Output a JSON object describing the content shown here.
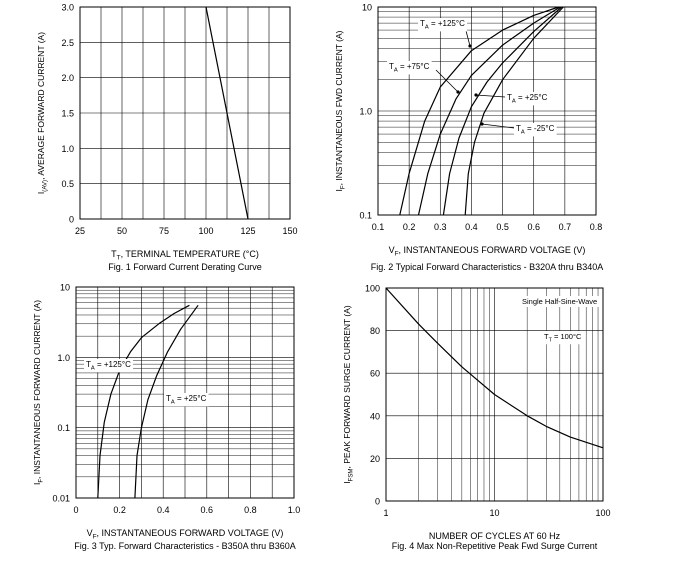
{
  "chart_data": [
    {
      "type": "line",
      "caption": "Fig. 1  Forward Current Derating Curve",
      "xlabel_main": "T",
      "xlabel_sub": "T",
      "xlabel_rest": ",  TERMINAL TEMPERATURE (°C)",
      "ylabel_main": "I",
      "ylabel_sub": "(AV)",
      "ylabel_rest": ", AVERAGE FORWARD CURRENT (A)",
      "xlim": [
        25,
        150
      ],
      "ylim": [
        0,
        3
      ],
      "xticks": [
        25,
        50,
        75,
        100,
        125,
        150
      ],
      "yticks": [
        0,
        0.5,
        1.0,
        1.5,
        2.0,
        2.5,
        3.0
      ],
      "ytick_labels": [
        "0",
        "0.5",
        "1.0",
        "1.5",
        "2.0",
        "2.5",
        "3.0"
      ],
      "series": [
        {
          "name": "derating",
          "x": [
            100,
            125
          ],
          "y": [
            3.0,
            0
          ]
        }
      ]
    },
    {
      "type": "line",
      "yscale": "log",
      "caption": "Fig. 2  Typical Forward Characteristics - B320A thru B340A",
      "xlabel_main": "V",
      "xlabel_sub": "F",
      "xlabel_rest": ", INSTANTANEOUS FORWARD VOLTAGE (V)",
      "ylabel_main": "I",
      "ylabel_sub": "F",
      "ylabel_rest": ", INSTANTANEOUS FWD CURRENT (A)",
      "xlim": [
        0.1,
        0.8
      ],
      "ylim": [
        0.1,
        10
      ],
      "xticks": [
        0.1,
        0.2,
        0.3,
        0.4,
        0.5,
        0.6,
        0.7,
        0.8
      ],
      "yticks": [
        0.1,
        1.0,
        10
      ],
      "ytick_labels": [
        "0.1",
        "1.0",
        "10"
      ],
      "series": [
        {
          "name": "TA = +125°C",
          "x": [
            0.17,
            0.2,
            0.25,
            0.3,
            0.4,
            0.5,
            0.6,
            0.68
          ],
          "y": [
            0.1,
            0.25,
            0.8,
            1.7,
            3.8,
            6.0,
            8.3,
            10
          ]
        },
        {
          "name": "TA = +75°C",
          "x": [
            0.23,
            0.26,
            0.3,
            0.35,
            0.4,
            0.5,
            0.6,
            0.685
          ],
          "y": [
            0.1,
            0.25,
            0.6,
            1.3,
            2.2,
            4.3,
            7.0,
            10
          ]
        },
        {
          "name": "TA = +25°C",
          "x": [
            0.31,
            0.33,
            0.36,
            0.4,
            0.45,
            0.5,
            0.6,
            0.69
          ],
          "y": [
            0.1,
            0.25,
            0.55,
            1.1,
            1.9,
            2.9,
            5.8,
            10
          ]
        },
        {
          "name": "TA = -25°C",
          "x": [
            0.38,
            0.39,
            0.41,
            0.44,
            0.5,
            0.6,
            0.695
          ],
          "y": [
            0.1,
            0.25,
            0.5,
            0.95,
            2.0,
            5.0,
            10
          ]
        }
      ],
      "annotations": [
        {
          "pre": "T",
          "sub": "A",
          "post": " = +125°C"
        },
        {
          "pre": "T",
          "sub": "A",
          "post": " = +75°C"
        },
        {
          "pre": "T",
          "sub": "A",
          "post": " = +25°C"
        },
        {
          "pre": "T",
          "sub": "A",
          "post": " = -25°C"
        }
      ]
    },
    {
      "type": "line",
      "yscale": "log",
      "caption": "Fig. 3  Typ. Forward Characteristics - B350A thru B360A",
      "xlabel_main": "V",
      "xlabel_sub": "F",
      "xlabel_rest": ", INSTANTANEOUS FORWARD VOLTAGE (V)",
      "ylabel_main": "I",
      "ylabel_sub": "F",
      "ylabel_rest": ", INSTANTANEOUS FORWARD CURRENT (A)",
      "xlim": [
        0,
        1.0
      ],
      "ylim": [
        0.01,
        10
      ],
      "xticks": [
        0,
        0.2,
        0.4,
        0.6,
        0.8,
        1.0
      ],
      "xtick_labels": [
        "0",
        "0.2",
        "0.4",
        "0.6",
        "0.8",
        "1.0"
      ],
      "yticks": [
        0.01,
        0.1,
        1.0,
        10
      ],
      "ytick_labels": [
        "0.01",
        "0.1",
        "1.0",
        "10"
      ],
      "series": [
        {
          "name": "TA = +125°C",
          "x": [
            0.1,
            0.11,
            0.13,
            0.16,
            0.2,
            0.25,
            0.3,
            0.38,
            0.45,
            0.52
          ],
          "y": [
            0.01,
            0.04,
            0.12,
            0.3,
            0.65,
            1.2,
            1.9,
            3.0,
            4.2,
            5.5
          ]
        },
        {
          "name": "TA = +25°C",
          "x": [
            0.27,
            0.28,
            0.3,
            0.33,
            0.37,
            0.42,
            0.48,
            0.56
          ],
          "y": [
            0.01,
            0.04,
            0.1,
            0.25,
            0.55,
            1.2,
            2.5,
            5.5
          ]
        }
      ],
      "annotations": [
        {
          "pre": "T",
          "sub": "A",
          "post": " = +125°C"
        },
        {
          "pre": "T",
          "sub": "A",
          "post": " = +25°C"
        }
      ]
    },
    {
      "type": "line",
      "xscale": "log",
      "caption": "Fig. 4  Max Non-Repetitive Peak Fwd Surge Current",
      "xlabel": "NUMBER OF CYCLES AT 60 Hz",
      "ylabel_main": "I",
      "ylabel_sub": "FSM",
      "ylabel_rest": ", PEAK FORWARD SURGE CURRENT (A)",
      "xlim": [
        1,
        100
      ],
      "ylim": [
        0,
        100
      ],
      "xticks": [
        1,
        10,
        100
      ],
      "yticks": [
        0,
        20,
        40,
        60,
        80,
        100
      ],
      "series": [
        {
          "name": "surge",
          "x": [
            1,
            2,
            3,
            5,
            10,
            20,
            30,
            50,
            100
          ],
          "y": [
            100,
            83,
            74,
            63,
            50,
            40,
            35,
            30,
            25
          ]
        }
      ],
      "annotations": [
        {
          "text": "Single Half-Sine-Wave"
        },
        {
          "pre": "T",
          "sub": "T",
          "post": " = 100°C"
        }
      ]
    }
  ]
}
